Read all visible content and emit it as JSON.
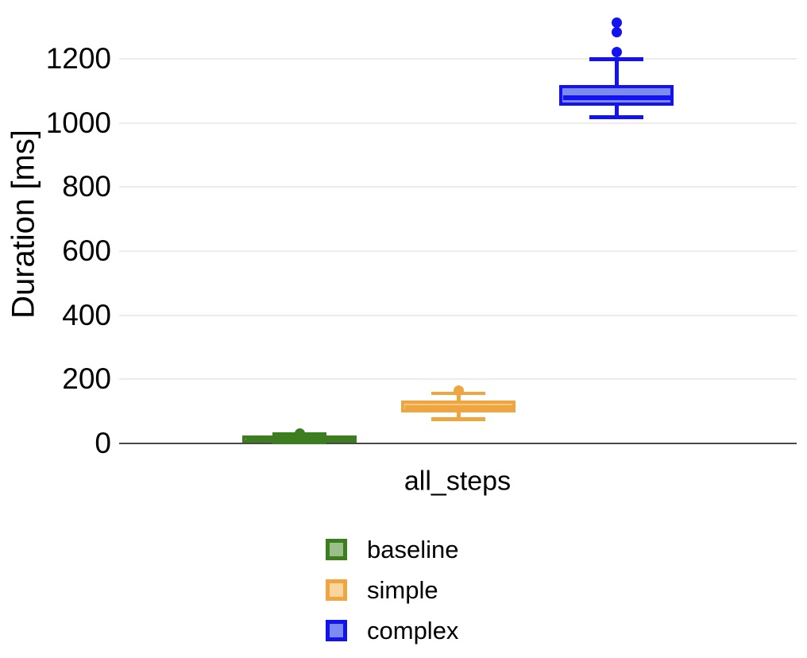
{
  "colors": {
    "grid": "#ececec",
    "axis_line": "#4a4a4a",
    "text": "#000000",
    "background": "#ffffff"
  },
  "chart_data": {
    "type": "boxplot",
    "title": "",
    "ylabel": "Duration [ms]",
    "x_category": "all_steps",
    "yticks": [
      0,
      200,
      400,
      600,
      800,
      1000,
      1200
    ],
    "ylim": [
      0,
      1350
    ],
    "grid": "horizontal-only",
    "legend_position": "bottom-left",
    "series": [
      {
        "name": "baseline",
        "stroke": "#3c7d1f",
        "fill": "#9bbf8b",
        "legend_fill": "#9bbf8b",
        "whisker_low": 3,
        "q1": 5,
        "median": 14,
        "q3": 24,
        "whisker_high": 30,
        "outliers": [
          31
        ]
      },
      {
        "name": "simple",
        "stroke": "#f0a640",
        "fill": "#f6c77e",
        "legend_fill": "#f9d6a0",
        "whisker_low": 76,
        "q1": 97,
        "median": 111,
        "q3": 133,
        "whisker_high": 156,
        "outliers": [
          165
        ]
      },
      {
        "name": "complex",
        "stroke": "#1313f0",
        "fill": "#7d8af0",
        "legend_fill": "#7d8af0",
        "whisker_low": 1018,
        "q1": 1054,
        "median": 1078,
        "q3": 1118,
        "whisker_high": 1199,
        "outliers": [
          1222,
          1282,
          1312
        ]
      }
    ]
  }
}
